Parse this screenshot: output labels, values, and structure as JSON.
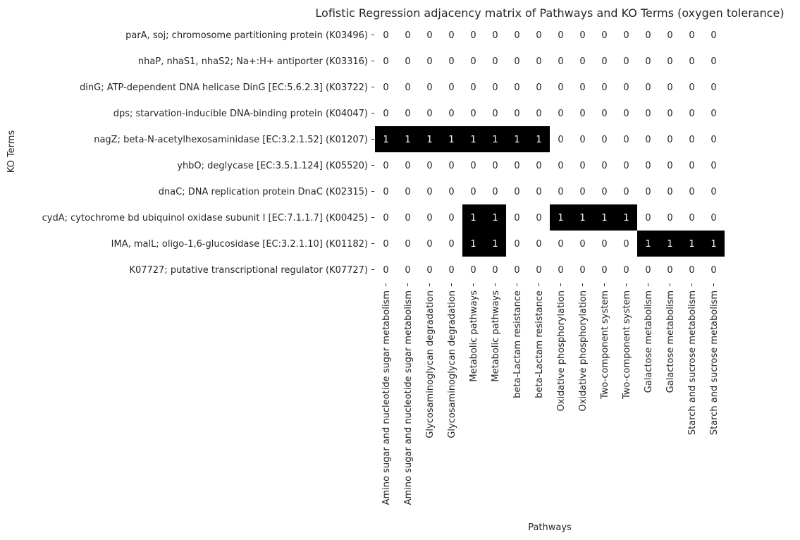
{
  "chart_data": {
    "type": "heatmap",
    "title": "Lofistic Regression adjacency matrix of Pathways and KO Terms (oxygen tolerance)",
    "xlabel": "Pathways",
    "ylabel": "KO Terms",
    "rows": [
      "parA, soj; chromosome partitioning protein (K03496)",
      "nhaP, nhaS1, nhaS2; Na+:H+ antiporter (K03316)",
      "dinG; ATP-dependent DNA helicase DinG [EC:5.6.2.3] (K03722)",
      "dps; starvation-inducible DNA-binding protein (K04047)",
      "nagZ; beta-N-acetylhexosaminidase [EC:3.2.1.52] (K01207)",
      "yhbO; deglycase [EC:3.5.1.124] (K05520)",
      "dnaC; DNA replication protein DnaC (K02315)",
      "cydA; cytochrome bd ubiquinol oxidase subunit I [EC:7.1.1.7] (K00425)",
      "IMA, malL; oligo-1,6-glucosidase [EC:3.2.1.10] (K01182)",
      "K07727; putative transcriptional regulator (K07727)"
    ],
    "columns": [
      "Amino sugar and nucleotide sugar metabolism",
      "Amino sugar and nucleotide sugar metabolism",
      "Glycosaminoglycan degradation",
      "Glycosaminoglycan degradation",
      "Metabolic pathways",
      "Metabolic pathways",
      "beta-Lactam resistance",
      "beta-Lactam resistance",
      "Oxidative phosphorylation",
      "Oxidative phosphorylation",
      "Two-component system",
      "Two-component system",
      "Galactose metabolism",
      "Galactose metabolism",
      "Starch and sucrose metabolism",
      "Starch and sucrose metabolism"
    ],
    "values": [
      [
        0,
        0,
        0,
        0,
        0,
        0,
        0,
        0,
        0,
        0,
        0,
        0,
        0,
        0,
        0,
        0
      ],
      [
        0,
        0,
        0,
        0,
        0,
        0,
        0,
        0,
        0,
        0,
        0,
        0,
        0,
        0,
        0,
        0
      ],
      [
        0,
        0,
        0,
        0,
        0,
        0,
        0,
        0,
        0,
        0,
        0,
        0,
        0,
        0,
        0,
        0
      ],
      [
        0,
        0,
        0,
        0,
        0,
        0,
        0,
        0,
        0,
        0,
        0,
        0,
        0,
        0,
        0,
        0
      ],
      [
        1,
        1,
        1,
        1,
        1,
        1,
        1,
        1,
        0,
        0,
        0,
        0,
        0,
        0,
        0,
        0
      ],
      [
        0,
        0,
        0,
        0,
        0,
        0,
        0,
        0,
        0,
        0,
        0,
        0,
        0,
        0,
        0,
        0
      ],
      [
        0,
        0,
        0,
        0,
        0,
        0,
        0,
        0,
        0,
        0,
        0,
        0,
        0,
        0,
        0,
        0
      ],
      [
        0,
        0,
        0,
        0,
        1,
        1,
        0,
        0,
        1,
        1,
        1,
        1,
        0,
        0,
        0,
        0
      ],
      [
        0,
        0,
        0,
        0,
        1,
        1,
        0,
        0,
        0,
        0,
        0,
        0,
        1,
        1,
        1,
        1
      ],
      [
        0,
        0,
        0,
        0,
        0,
        0,
        0,
        0,
        0,
        0,
        0,
        0,
        0,
        0,
        0,
        0
      ]
    ],
    "colors": {
      "zero_fill": "#ffffff",
      "one_fill": "#000000",
      "zero_text": "#262626",
      "one_text": "#ffffff"
    }
  }
}
